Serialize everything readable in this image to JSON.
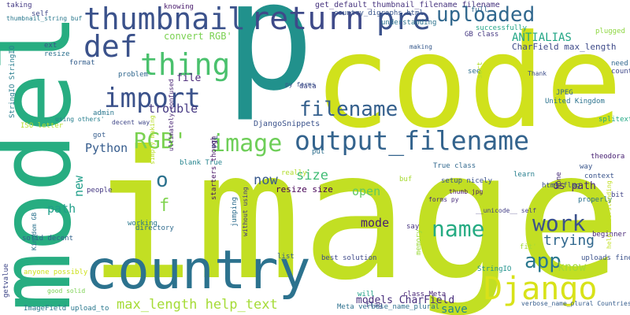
{
  "word_cloud": {
    "words": [
      "image",
      "code",
      "p",
      "model",
      "country",
      "output_filename",
      "thumbnail",
      "return",
      "pre",
      "uploaded",
      "def",
      "thing",
      "import",
      "filename",
      "RGB'",
      "image",
      "o",
      "name",
      "work",
      "app",
      "Django",
      "trying",
      "ANTIALIAS",
      "CharField max_length",
      "max_length help_text",
      "models CharField",
      "save",
      "mode",
      "open",
      "size",
      "now",
      "trouble",
      "file",
      "Python",
      "f",
      "new",
      "path",
      "os path",
      "know",
      "resize size",
      "DjangoSnippets",
      "convert RGB'",
      "get_default_thumbnail_filename filename",
      "knowing",
      "taking",
      "self",
      "thumbnail_string buf",
      "StringIO StringIO",
      "ext",
      "resize",
      "format",
      "problem",
      "decent way",
      "admin",
      "using others'",
      "ISO letter",
      "blank True",
      "PIL",
      "starters though",
      "got",
      "country_digraphs html",
      "understanding",
      "full",
      "successfully",
      "plugged",
      "GB class",
      "making",
      "see",
      "Thank",
      "need",
      "countries",
      "JPEG",
      "United Kingdom",
      "splitext",
      "theodora",
      "context",
      "way",
      "None",
      "html flag",
      "learn",
      "True class",
      "setup nicely",
      "thumb jpg",
      "forms py",
      "really",
      "put",
      "data",
      "py forms",
      "people",
      "working",
      "directory",
      "jumping",
      "buf",
      "properly",
      "bit",
      "beginner",
      "__unicode__ self",
      "uploads fine",
      "fit'",
      "help understanding",
      "list",
      "best solution",
      "memory",
      "StringIO",
      "will",
      "flag",
      "class Meta",
      "Meta verbose_name_plural",
      "ImageField upload_to",
      "good solid",
      "anyone possibly",
      "getvalue",
      "Kingdom GB",
      "solid decent",
      "simply making",
      "say",
      "sort",
      "verbose_name_plural Countries",
      "ultimately confused",
      "without using"
    ]
  }
}
